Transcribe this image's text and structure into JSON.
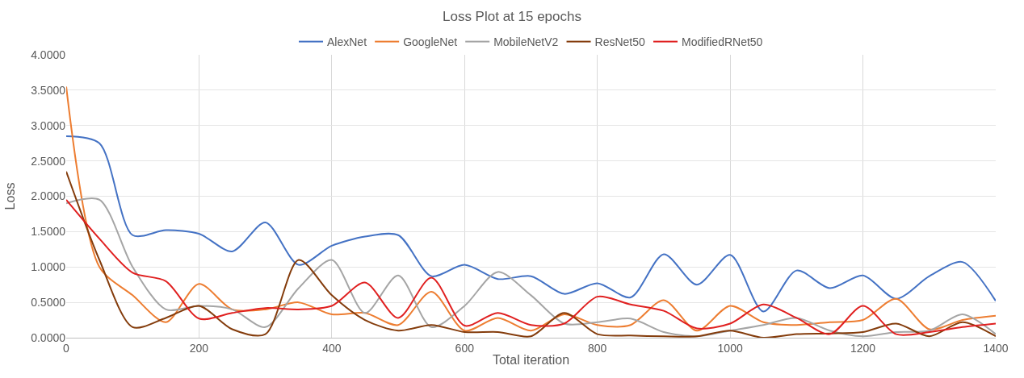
{
  "chart_data": {
    "type": "line",
    "title": "Loss Plot at 15 epochs",
    "xlabel": "Total iteration",
    "ylabel": "Loss",
    "x": [
      0,
      50,
      100,
      150,
      200,
      250,
      300,
      350,
      400,
      450,
      500,
      550,
      600,
      650,
      700,
      750,
      800,
      850,
      900,
      950,
      1000,
      1050,
      1100,
      1150,
      1200,
      1250,
      1300,
      1350,
      1400
    ],
    "series": [
      {
        "name": "AlexNet",
        "color": "#4472c4",
        "values": [
          2.85,
          2.75,
          1.45,
          1.52,
          1.47,
          1.22,
          1.63,
          1.03,
          1.3,
          1.43,
          1.45,
          0.87,
          1.03,
          0.83,
          0.87,
          0.62,
          0.77,
          0.57,
          1.18,
          0.75,
          1.17,
          0.37,
          0.95,
          0.7,
          0.88,
          0.55,
          0.87,
          1.07,
          0.52
        ]
      },
      {
        "name": "GoogleNet",
        "color": "#ed7d31",
        "values": [
          3.55,
          1.0,
          0.6,
          0.22,
          0.76,
          0.4,
          0.4,
          0.5,
          0.33,
          0.35,
          0.18,
          0.65,
          0.1,
          0.28,
          0.1,
          0.33,
          0.18,
          0.18,
          0.53,
          0.1,
          0.45,
          0.22,
          0.18,
          0.22,
          0.25,
          0.55,
          0.12,
          0.25,
          0.31
        ]
      },
      {
        "name": "MobileNetV2",
        "color": "#a5a5a5",
        "values": [
          1.9,
          1.95,
          1.0,
          0.4,
          0.45,
          0.4,
          0.15,
          0.7,
          1.1,
          0.35,
          0.88,
          0.15,
          0.45,
          0.93,
          0.6,
          0.2,
          0.22,
          0.27,
          0.08,
          0.02,
          0.1,
          0.18,
          0.28,
          0.1,
          0.02,
          0.08,
          0.1,
          0.33,
          0.05
        ]
      },
      {
        "name": "ResNet50",
        "color": "#843c0c",
        "values": [
          2.35,
          1.1,
          0.15,
          0.28,
          0.45,
          0.12,
          0.05,
          1.1,
          0.6,
          0.25,
          0.1,
          0.18,
          0.08,
          0.08,
          0.02,
          0.35,
          0.05,
          0.03,
          0.02,
          0.02,
          0.1,
          0.0,
          0.05,
          0.06,
          0.08,
          0.2,
          0.02,
          0.22,
          0.02
        ]
      },
      {
        "name": "ModifiedRNet50",
        "color": "#e02020",
        "values": [
          1.95,
          1.4,
          0.92,
          0.8,
          0.27,
          0.35,
          0.42,
          0.4,
          0.45,
          0.78,
          0.28,
          0.85,
          0.17,
          0.35,
          0.18,
          0.2,
          0.58,
          0.47,
          0.38,
          0.13,
          0.2,
          0.47,
          0.28,
          0.05,
          0.45,
          0.05,
          0.08,
          0.15,
          0.2
        ]
      }
    ],
    "xlim": [
      0,
      1400
    ],
    "xticks": [
      0,
      200,
      400,
      600,
      800,
      1000,
      1200,
      1400
    ],
    "ylim": [
      0,
      4
    ],
    "yticks": [
      {
        "value": 0,
        "label": "0.0000"
      },
      {
        "value": 0.5,
        "label": "0.5000"
      },
      {
        "value": 1,
        "label": "1.0000"
      },
      {
        "value": 1.5,
        "label": "1.5000"
      },
      {
        "value": 2,
        "label": "2.0000"
      },
      {
        "value": 2.5,
        "label": "2.5000"
      },
      {
        "value": 3,
        "label": "3.0000"
      },
      {
        "value": 3.5,
        "label": "3.5000"
      },
      {
        "value": 4,
        "label": "4.0000"
      }
    ],
    "grid": true,
    "legend": "top",
    "line_style": "solid",
    "marker": "none"
  }
}
